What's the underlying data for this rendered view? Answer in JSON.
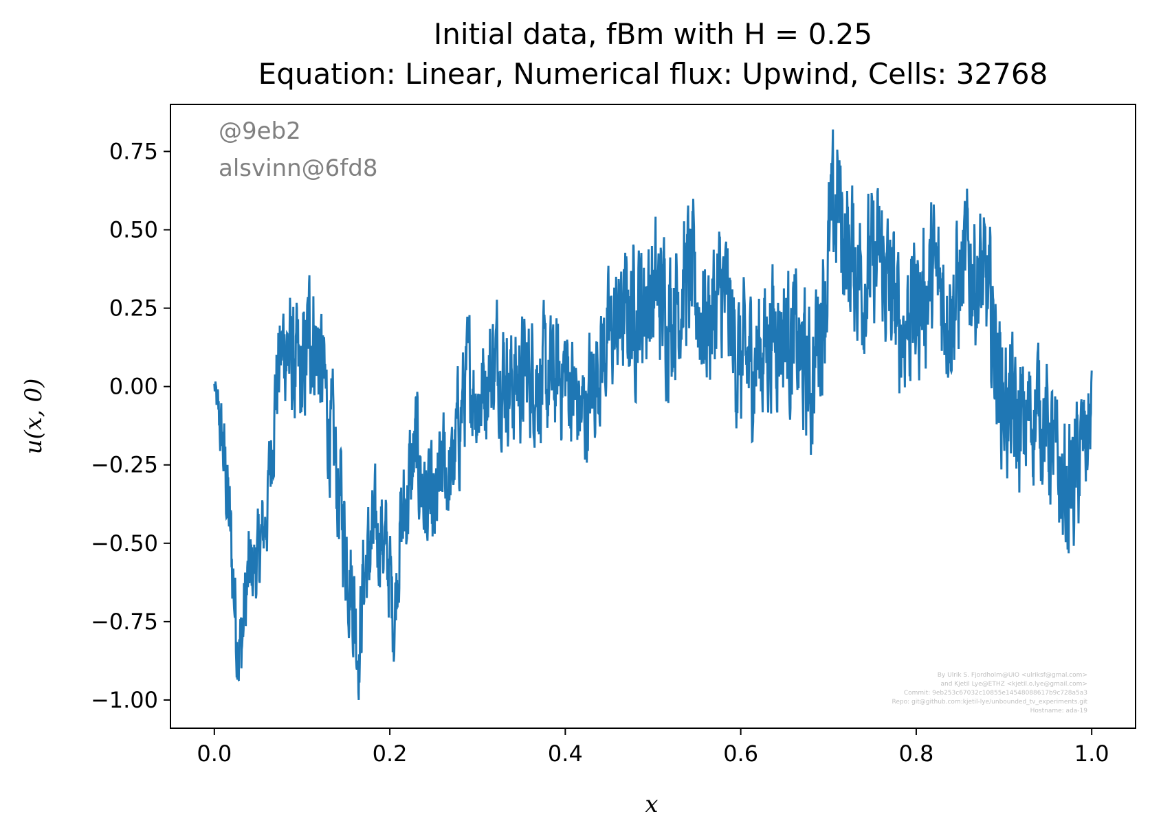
{
  "chart_data": {
    "type": "line",
    "title_line1": "Initial data, fBm with H = 0.25",
    "title_line2": "Equation: Linear, Numerical flux: Upwind, Cells: 32768",
    "xlabel": "x",
    "ylabel": "u(x, 0)",
    "xlim": [
      -0.05,
      1.05
    ],
    "ylim": [
      -1.09,
      0.9
    ],
    "xticks": [
      0.0,
      0.2,
      0.4,
      0.6,
      0.8,
      1.0
    ],
    "xtick_labels": [
      "0.0",
      "0.2",
      "0.4",
      "0.6",
      "0.8",
      "1.0"
    ],
    "yticks": [
      0.75,
      0.5,
      0.25,
      0.0,
      -0.25,
      -0.5,
      -0.75,
      -1.0
    ],
    "ytick_labels": [
      "0.75",
      "0.50",
      "0.25",
      "0.00",
      "−0.25",
      "−0.50",
      "−0.75",
      "−1.00"
    ],
    "grid": false,
    "series": [
      {
        "color": "#1f77b4",
        "x": [
          0.0,
          0.005,
          0.01,
          0.015,
          0.02,
          0.025,
          0.03,
          0.035,
          0.04,
          0.05,
          0.06,
          0.07,
          0.08,
          0.09,
          0.1,
          0.11,
          0.12,
          0.13,
          0.14,
          0.15,
          0.16,
          0.165,
          0.17,
          0.18,
          0.19,
          0.2,
          0.205,
          0.21,
          0.22,
          0.23,
          0.24,
          0.25,
          0.26,
          0.27,
          0.28,
          0.29,
          0.3,
          0.32,
          0.34,
          0.36,
          0.38,
          0.4,
          0.42,
          0.44,
          0.46,
          0.48,
          0.5,
          0.52,
          0.54,
          0.56,
          0.58,
          0.6,
          0.62,
          0.64,
          0.66,
          0.68,
          0.7,
          0.71,
          0.72,
          0.74,
          0.76,
          0.78,
          0.8,
          0.82,
          0.84,
          0.86,
          0.88,
          0.9,
          0.92,
          0.94,
          0.96,
          0.97,
          0.98,
          0.99,
          1.0
        ],
        "y": [
          0.0,
          -0.1,
          -0.2,
          -0.35,
          -0.55,
          -0.75,
          -0.85,
          -0.7,
          -0.6,
          -0.55,
          -0.4,
          0.0,
          0.15,
          0.05,
          0.0,
          0.2,
          0.1,
          -0.1,
          -0.3,
          -0.5,
          -0.7,
          -0.85,
          -0.6,
          -0.5,
          -0.45,
          -0.6,
          -0.75,
          -0.5,
          -0.35,
          -0.2,
          -0.35,
          -0.45,
          -0.25,
          -0.3,
          -0.1,
          0.05,
          -0.05,
          0.1,
          0.0,
          0.05,
          0.0,
          0.05,
          -0.1,
          0.1,
          0.2,
          0.25,
          0.3,
          0.25,
          0.35,
          0.2,
          0.3,
          0.05,
          0.1,
          0.2,
          0.15,
          0.0,
          0.4,
          0.6,
          0.45,
          0.35,
          0.4,
          0.2,
          0.25,
          0.35,
          0.25,
          0.4,
          0.3,
          -0.05,
          -0.15,
          -0.05,
          -0.25,
          -0.35,
          -0.3,
          -0.2,
          -0.1
        ],
        "amplitude": [
          0.03,
          0.08,
          0.12,
          0.15,
          0.15,
          0.15,
          0.15,
          0.15,
          0.13,
          0.12,
          0.12,
          0.15,
          0.17,
          0.18,
          0.18,
          0.2,
          0.18,
          0.17,
          0.17,
          0.17,
          0.17,
          0.15,
          0.15,
          0.15,
          0.15,
          0.15,
          0.13,
          0.15,
          0.17,
          0.17,
          0.17,
          0.17,
          0.15,
          0.15,
          0.17,
          0.15,
          0.15,
          0.17,
          0.17,
          0.17,
          0.17,
          0.17,
          0.17,
          0.17,
          0.17,
          0.2,
          0.2,
          0.2,
          0.2,
          0.2,
          0.2,
          0.2,
          0.2,
          0.2,
          0.2,
          0.2,
          0.22,
          0.22,
          0.22,
          0.2,
          0.2,
          0.2,
          0.2,
          0.2,
          0.2,
          0.2,
          0.2,
          0.2,
          0.2,
          0.18,
          0.18,
          0.2,
          0.2,
          0.18,
          0.15
        ]
      }
    ]
  },
  "watermark": {
    "line1": "@9eb2",
    "line2": "alsvinn@6fd8"
  },
  "credit": {
    "lines": [
      "By Ulrik S. Fjordholm@UiO <ulriksf@gmal.com>",
      "and Kjetil Lye@ETHZ <kjetil.o.lye@gmail.com>",
      "Commit: 9eb253c67032c10855e14548088617b9c728a5a3",
      "Repo: git@github.com:kjetil-lye/unbounded_tv_experiments.git",
      "Hostname: ada-19"
    ]
  }
}
